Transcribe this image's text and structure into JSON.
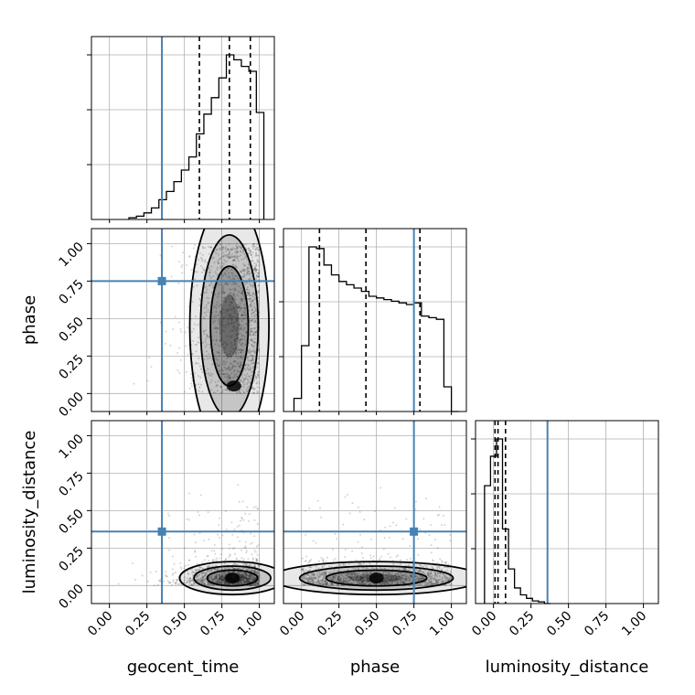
{
  "chart_data": {
    "type": "corner",
    "parameters": [
      "geocent_time",
      "phase",
      "luminosity_distance"
    ],
    "truths": {
      "geocent_time": 0.35,
      "phase": 0.75,
      "luminosity_distance": 0.36
    },
    "ranges": {
      "geocent_time": [
        -0.12,
        1.1
      ],
      "phase": [
        -0.12,
        1.1
      ],
      "luminosity_distance": [
        -0.12,
        1.1
      ]
    },
    "tick_labels": [
      "0.00",
      "0.25",
      "0.50",
      "0.75",
      "1.00"
    ],
    "tick_values": [
      0.0,
      0.25,
      0.5,
      0.75,
      1.0
    ],
    "grid": true,
    "colors": {
      "truth": "#4682b4",
      "hist": "#000000",
      "scatter": "#555555"
    },
    "histograms": {
      "geocent_time": {
        "quantiles": [
          0.6,
          0.8,
          0.94
        ],
        "bin_edges": [
          0.13,
          0.18,
          0.23,
          0.28,
          0.33,
          0.38,
          0.43,
          0.48,
          0.53,
          0.58,
          0.63,
          0.68,
          0.73,
          0.78,
          0.83,
          0.88,
          0.93,
          0.98,
          1.03
        ],
        "counts": [
          0.01,
          0.02,
          0.04,
          0.07,
          0.12,
          0.17,
          0.23,
          0.3,
          0.38,
          0.52,
          0.64,
          0.74,
          0.86,
          1.0,
          0.97,
          0.93,
          0.9,
          0.65
        ]
      },
      "phase": {
        "quantiles": [
          0.12,
          0.43,
          0.79
        ],
        "bin_edges": [
          -0.05,
          0.0,
          0.05,
          0.1,
          0.15,
          0.2,
          0.25,
          0.3,
          0.35,
          0.4,
          0.45,
          0.5,
          0.55,
          0.6,
          0.65,
          0.7,
          0.75,
          0.8,
          0.85,
          0.9,
          0.95,
          1.0,
          1.05
        ],
        "counts": [
          0.08,
          0.4,
          1.0,
          0.99,
          0.89,
          0.83,
          0.79,
          0.77,
          0.75,
          0.73,
          0.7,
          0.69,
          0.68,
          0.67,
          0.66,
          0.65,
          0.66,
          0.58,
          0.57,
          0.56,
          0.15,
          0.0
        ]
      },
      "luminosity_distance": {
        "quantiles": [
          0.01,
          0.03,
          0.08
        ],
        "bin_edges": [
          -0.06,
          -0.02,
          0.02,
          0.06,
          0.1,
          0.14,
          0.18,
          0.22,
          0.26,
          0.3,
          0.34,
          0.38
        ],
        "counts": [
          0.68,
          0.85,
          0.95,
          0.43,
          0.2,
          0.09,
          0.05,
          0.03,
          0.015,
          0.01,
          0.0
        ]
      }
    },
    "pairs": [
      {
        "x": "geocent_time",
        "y": "phase",
        "core": {
          "x": 0.8,
          "y": 0.45,
          "sx": 0.12,
          "sy": 0.38
        }
      },
      {
        "x": "geocent_time",
        "y": "luminosity_distance",
        "core": {
          "x": 0.82,
          "y": 0.05,
          "sx": 0.16,
          "sy": 0.05
        }
      },
      {
        "x": "phase",
        "y": "luminosity_distance",
        "core": {
          "x": 0.5,
          "y": 0.05,
          "sx": 0.32,
          "sy": 0.05
        }
      }
    ]
  }
}
